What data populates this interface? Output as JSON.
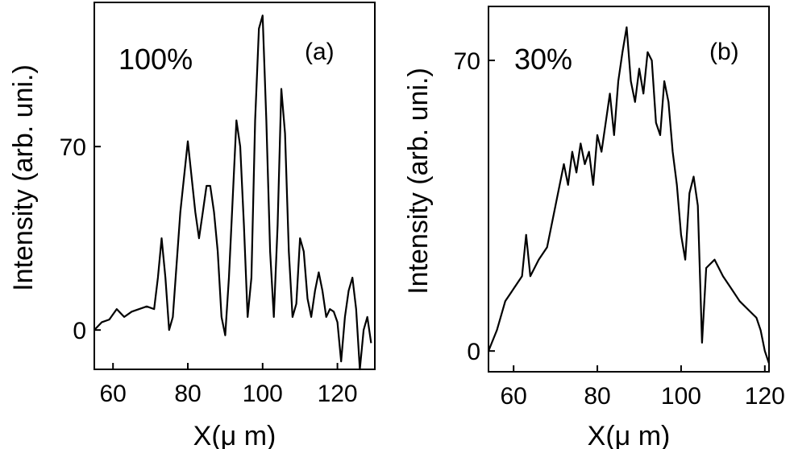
{
  "chart_data": [
    {
      "type": "line",
      "panel_label": "(a)",
      "annotation": "100%",
      "xlabel": "X(μ m)",
      "ylabel": "Intensity (arb. uni.)",
      "xlim": [
        55,
        130
      ],
      "ylim": [
        -15,
        125
      ],
      "xticks": [
        60,
        80,
        100,
        120
      ],
      "yticks": [
        0,
        70
      ],
      "series": [
        {
          "x": [
            55,
            57,
            59,
            61,
            63,
            65,
            67,
            69,
            71,
            72,
            73,
            74,
            75,
            76,
            78,
            80,
            82,
            83,
            84,
            85,
            86,
            87,
            88,
            89,
            90,
            91,
            93,
            94,
            95,
            96,
            97,
            98,
            99,
            100,
            101,
            102,
            103,
            104,
            105,
            106,
            107,
            108,
            109,
            110,
            111,
            112,
            113,
            114,
            115,
            116,
            117,
            118,
            119,
            120,
            121,
            122,
            123,
            124,
            125,
            126,
            127,
            128,
            129
          ],
          "y": [
            0,
            3,
            4,
            8,
            5,
            7,
            8,
            9,
            8,
            20,
            35,
            20,
            0,
            5,
            45,
            72,
            45,
            35,
            45,
            55,
            55,
            45,
            30,
            5,
            -2,
            20,
            80,
            70,
            40,
            5,
            20,
            80,
            115,
            120,
            80,
            30,
            5,
            40,
            92,
            75,
            30,
            5,
            10,
            35,
            30,
            12,
            5,
            15,
            22,
            15,
            5,
            8,
            7,
            3,
            -12,
            5,
            15,
            20,
            8,
            -15,
            0,
            5,
            -5
          ]
        }
      ]
    },
    {
      "type": "line",
      "panel_label": "(b)",
      "annotation": "30%",
      "xlabel": "X(μ m)",
      "ylabel": "Intensity (arb. uni.)",
      "xlim": [
        54,
        121
      ],
      "ylim": [
        -5,
        83
      ],
      "xticks": [
        60,
        80,
        100,
        120
      ],
      "yticks": [
        0,
        70
      ],
      "series": [
        {
          "x": [
            54,
            56,
            58,
            60,
            62,
            63,
            64,
            66,
            68,
            70,
            72,
            73,
            74,
            75,
            76,
            77,
            78,
            79,
            80,
            81,
            82,
            83,
            84,
            85,
            86,
            87,
            88,
            89,
            90,
            91,
            92,
            93,
            94,
            95,
            96,
            97,
            98,
            99,
            100,
            101,
            102,
            103,
            104,
            105,
            106,
            108,
            110,
            112,
            114,
            116,
            118,
            119,
            120,
            121
          ],
          "y": [
            0,
            5,
            12,
            15,
            18,
            28,
            18,
            22,
            25,
            35,
            45,
            40,
            48,
            43,
            50,
            45,
            48,
            40,
            52,
            48,
            55,
            62,
            52,
            65,
            72,
            78,
            65,
            60,
            68,
            62,
            72,
            70,
            55,
            52,
            65,
            60,
            48,
            40,
            28,
            22,
            38,
            42,
            35,
            2,
            20,
            22,
            18,
            15,
            12,
            10,
            8,
            5,
            0,
            -3
          ]
        }
      ]
    }
  ]
}
